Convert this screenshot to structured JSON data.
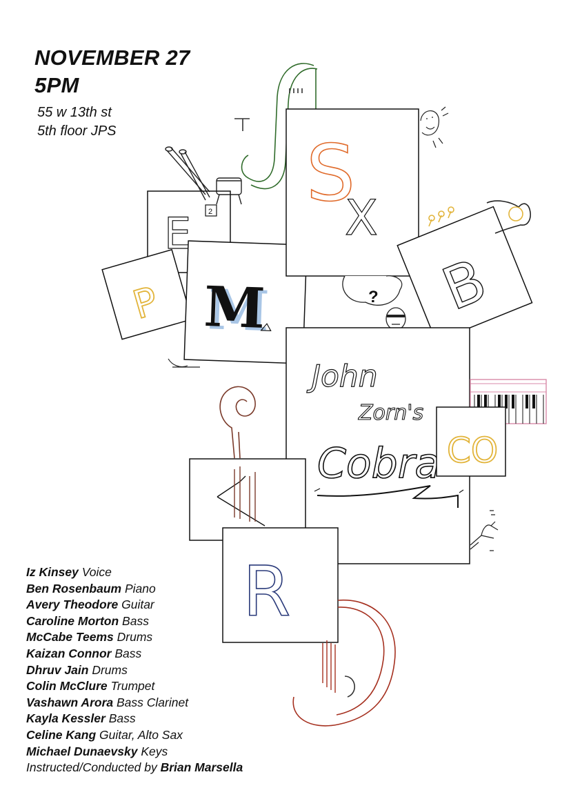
{
  "event": {
    "date": "NOVEMBER 27",
    "time": "5PM",
    "address_line1": "55 w 13th st",
    "address_line2": "5th floor JPS"
  },
  "title": {
    "line1": "John",
    "line2": "Zorn's",
    "line3": "Cobra"
  },
  "glyphs": {
    "e": "E",
    "e_sub": "2",
    "p": "P",
    "m": "M",
    "s": "S",
    "x": "X",
    "b": "B",
    "question": "?",
    "co": "CO",
    "r": "R"
  },
  "performers": [
    {
      "name": "Iz Kinsey",
      "role": "Voice"
    },
    {
      "name": "Ben Rosenbaum",
      "role": "Piano"
    },
    {
      "name": "Avery Theodore",
      "role": "Guitar"
    },
    {
      "name": "Caroline Morton",
      "role": "Bass"
    },
    {
      "name": "McCabe Teems",
      "role": "Drums"
    },
    {
      "name": "Kaizan Connor",
      "role": "Bass"
    },
    {
      "name": "Dhruv Jain",
      "role": "Drums"
    },
    {
      "name": "Colin McClure",
      "role": "Trumpet"
    },
    {
      "name": "Vashawn Arora",
      "role": "Bass Clarinet"
    },
    {
      "name": "Kayla Kessler",
      "role": "Bass"
    },
    {
      "name": "Celine Kang",
      "role": "Guitar, Alto Sax"
    },
    {
      "name": "Michael Dunaevsky",
      "role": "Keys"
    }
  ],
  "conductor": {
    "prefix": "Instructed/Conducted by",
    "name": "Brian Marsella"
  },
  "colors": {
    "ink": "#111111",
    "green": "#2f6b2a",
    "orange": "#e06a2a",
    "gold": "#e2b43a",
    "pale_blue": "#a9c6e6",
    "navy": "#2a3a7a",
    "red": "#a5301f",
    "pink": "#d98aa8"
  }
}
